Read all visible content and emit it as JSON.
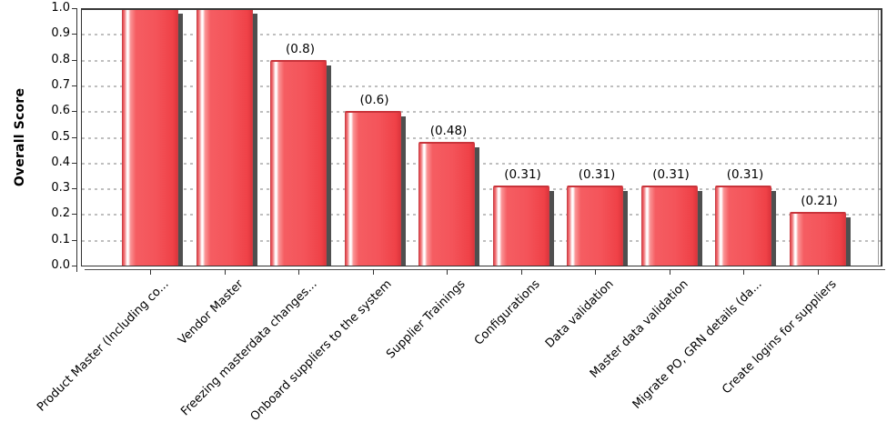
{
  "chart_data": {
    "type": "bar",
    "title": "",
    "ylabel": "Overall Score",
    "xlabel": "",
    "ylim": [
      0,
      1
    ],
    "ytick_step": 0.1,
    "yticks": [
      "0.0",
      "0.1",
      "0.2",
      "0.3",
      "0.4",
      "0.5",
      "0.6",
      "0.7",
      "0.8",
      "0.9",
      "1.0"
    ],
    "grid": "horizontal-dashed",
    "legend_position": "none",
    "categories": [
      "Product Master (Including co...",
      "Vendor Master",
      "Freezing masterdata changes...",
      "Onboard suppliers to the system",
      "Supplier Trainings",
      "Configurations",
      "Data validation",
      "Master data validation",
      "Migrate PO, GRN details (da...",
      "Create logins for suppliers"
    ],
    "values": [
      1.0,
      1.0,
      0.8,
      0.6,
      0.48,
      0.31,
      0.31,
      0.31,
      0.31,
      0.21
    ],
    "bar_value_labels": [
      "",
      "",
      "(0.8)",
      "(0.6)",
      "(0.48)",
      "(0.31)",
      "(0.31)",
      "(0.31)",
      "(0.31)",
      "(0.21)"
    ],
    "colors": {
      "bar_fill": "#f4545a",
      "bar_edge": "#c94046",
      "bar_highlight": "#ffffff",
      "bar_shadow": "#4f4f4f",
      "gridline": "#bfbfbf",
      "axis": "#333333",
      "text": "#000000",
      "background": "#ffffff"
    }
  }
}
